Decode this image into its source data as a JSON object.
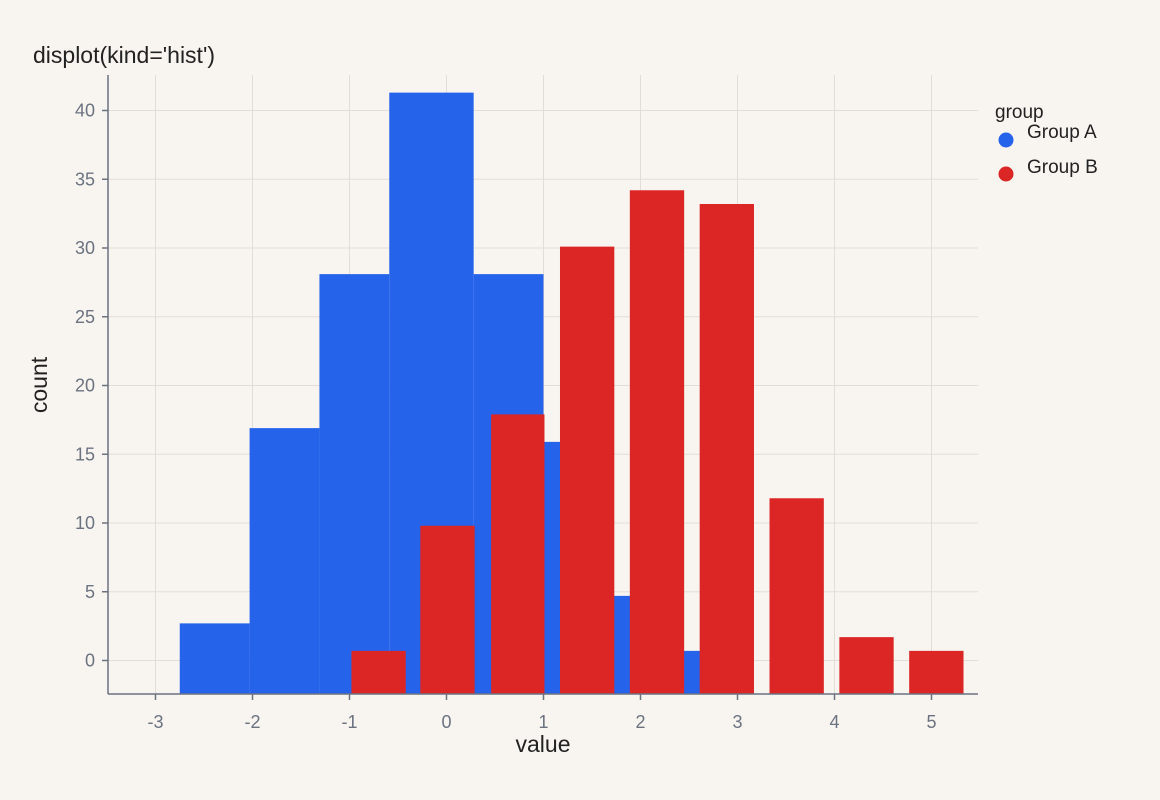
{
  "chart_data": {
    "type": "bar",
    "title": "displot(kind='hist')",
    "xlabel": "value",
    "ylabel": "count",
    "xlim": [
      -3.5,
      5.5
    ],
    "ylim": [
      -2.5,
      42.5
    ],
    "xticks": [
      -3,
      -2,
      -1,
      0,
      1,
      2,
      3,
      4,
      5
    ],
    "yticks": [
      0,
      5,
      10,
      15,
      20,
      25,
      30,
      35,
      40
    ],
    "grid": true,
    "legend": {
      "title": "group",
      "placement": "top-right"
    },
    "series": [
      {
        "name": "Group A",
        "color": "#2563eb",
        "bins": [
          {
            "x0": -2.75,
            "x1": -2.03,
            "count": 2.7
          },
          {
            "x0": -2.03,
            "x1": -1.31,
            "count": 16.9
          },
          {
            "x0": -1.31,
            "x1": -0.59,
            "count": 28.1
          },
          {
            "x0": -0.59,
            "x1": 0.28,
            "count": 41.3
          },
          {
            "x0": 0.28,
            "x1": 1.0,
            "count": 28.1
          },
          {
            "x0": 1.0,
            "x1": 1.72,
            "count": 15.9
          },
          {
            "x0": 1.72,
            "x1": 2.44,
            "count": 4.7
          },
          {
            "x0": 2.44,
            "x1": 3.16,
            "count": 0.7
          }
        ]
      },
      {
        "name": "Group B",
        "color": "#dc2626",
        "bins": [
          {
            "x0": -0.98,
            "x1": -0.42,
            "count": 0.7
          },
          {
            "x0": -0.27,
            "x1": 0.29,
            "count": 9.8
          },
          {
            "x0": 0.46,
            "x1": 1.01,
            "count": 17.9
          },
          {
            "x0": 1.17,
            "x1": 1.73,
            "count": 30.1
          },
          {
            "x0": 1.89,
            "x1": 2.45,
            "count": 34.2
          },
          {
            "x0": 2.61,
            "x1": 3.17,
            "count": 33.2
          },
          {
            "x0": 3.33,
            "x1": 3.89,
            "count": 11.8
          },
          {
            "x0": 4.05,
            "x1": 4.61,
            "count": 1.7
          },
          {
            "x0": 4.77,
            "x1": 5.33,
            "count": 0.7
          }
        ]
      }
    ]
  }
}
